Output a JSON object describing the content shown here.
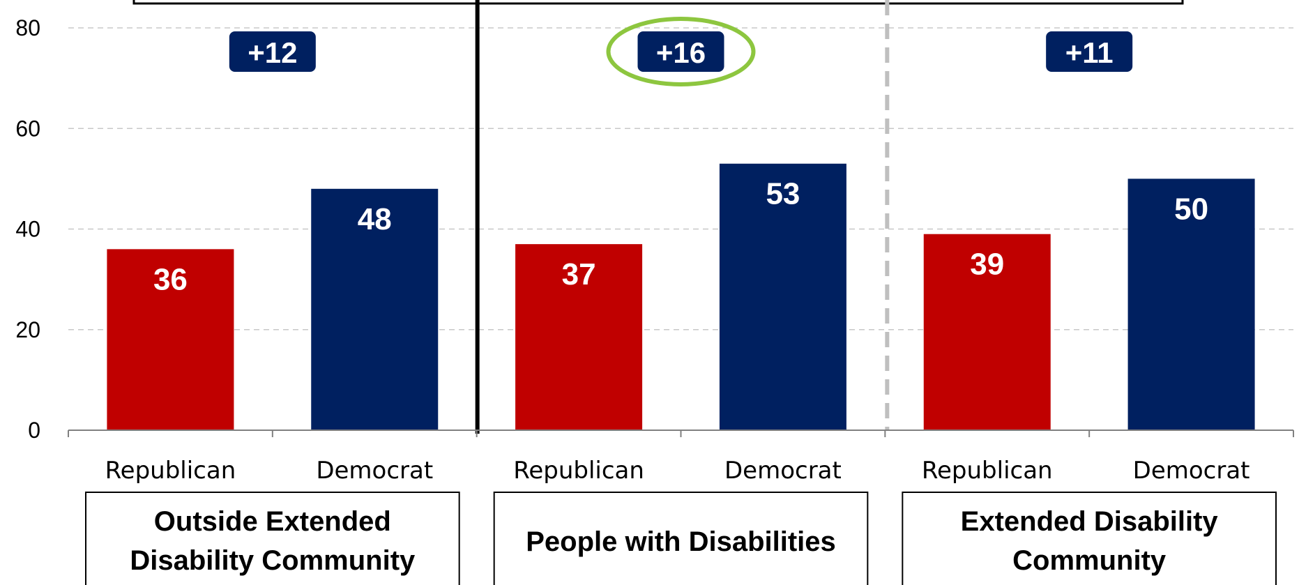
{
  "chart_data": {
    "type": "bar",
    "ylim": [
      0,
      80
    ],
    "yticks": [
      0,
      20,
      40,
      60,
      80
    ],
    "grid": true,
    "categories": [
      "Republican",
      "Democrat"
    ],
    "groups": [
      {
        "label_lines": [
          "Outside Extended",
          "Disability Community"
        ],
        "values": [
          36,
          48
        ],
        "difference": "+12",
        "highlighted": false
      },
      {
        "label_lines": [
          "People with Disabilities"
        ],
        "values": [
          37,
          53
        ],
        "difference": "+16",
        "highlighted": true
      },
      {
        "label_lines": [
          "Extended Disability",
          "Community"
        ],
        "values": [
          39,
          50
        ],
        "difference": "+11",
        "highlighted": false
      }
    ],
    "colors": {
      "Republican": "#c00000",
      "Democrat": "#002060",
      "difference_badge": "#002060",
      "highlight_ring": "#8dc63f",
      "gridline": "#c8c8c8",
      "group_separator_dashed": "#bfbfbf"
    }
  }
}
